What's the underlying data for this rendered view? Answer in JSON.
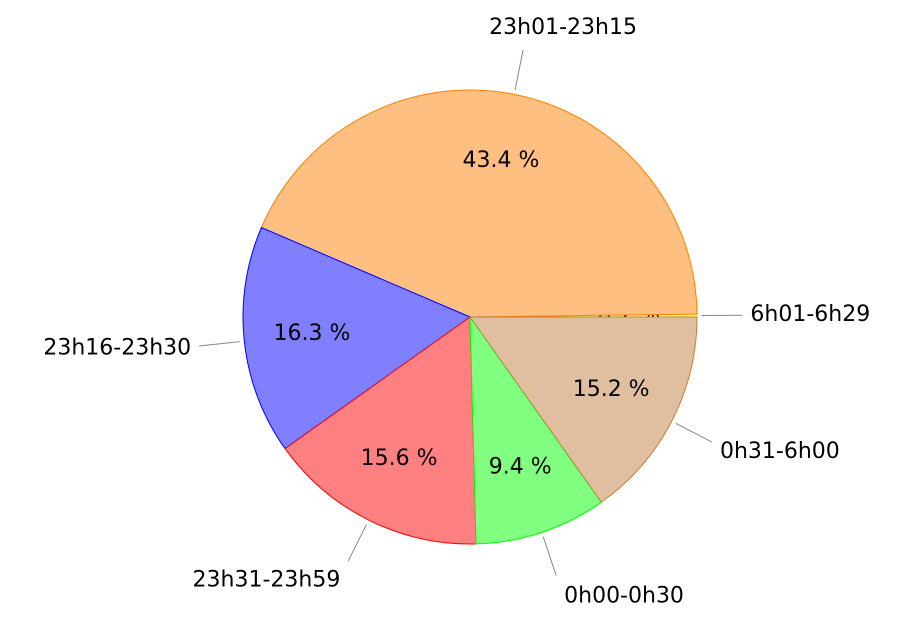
{
  "chart_data": {
    "type": "pie",
    "categories": [
      "6h01-6h29",
      "23h01-23h15",
      "23h16-23h30",
      "23h31-23h59",
      "0h00-0h30",
      "0h31-6h00"
    ],
    "values": [
      0.2,
      43.4,
      16.3,
      15.6,
      9.4,
      15.2
    ],
    "value_labels": [
      "0.2 %",
      "43.4 %",
      "16.3 %",
      "15.6 %",
      "9.4 %",
      "15.2 %"
    ],
    "colors": [
      "#ffff80",
      "#ffbf80",
      "#8080ff",
      "#ff8080",
      "#80ff80",
      "#dfbf9f"
    ],
    "edge_colors": [
      "#ffff00",
      "#ff8000",
      "#0000ff",
      "#ff0000",
      "#00ff00",
      "#bf8040"
    ]
  }
}
